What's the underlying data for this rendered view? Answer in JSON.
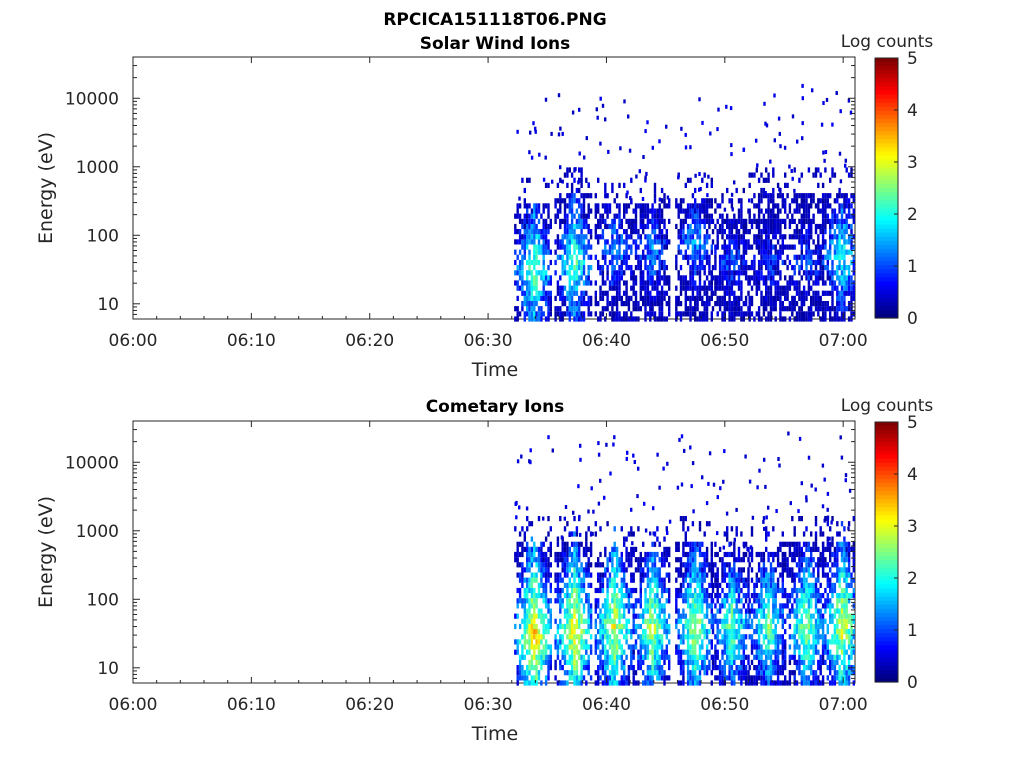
{
  "figure_title": "RPCICA151118T06.PNG",
  "chart_data": [
    {
      "type": "heatmap",
      "title": "Solar Wind Ions",
      "xlabel": "Time",
      "ylabel": "Energy (eV)",
      "x_ticks": [
        "06:00",
        "06:10",
        "06:20",
        "06:30",
        "06:40",
        "06:50",
        "07:00"
      ],
      "x_range_min": [
        0,
        61
      ],
      "y_scale": "log",
      "y_ticks": [
        "10",
        "100",
        "1000",
        "10000"
      ],
      "y_range": [
        6,
        40000
      ],
      "colorbar": {
        "label": "Log counts",
        "ticks": [
          "0",
          "1",
          "2",
          "3",
          "4",
          "5"
        ],
        "range": [
          0,
          5
        ],
        "colormap": "jet"
      },
      "bursts": [
        {
          "t": 33.8,
          "peak_e": 30,
          "top_e": 300,
          "level": 2.4
        },
        {
          "t": 37.2,
          "peak_e": 40,
          "top_e": 400,
          "level": 2.3
        },
        {
          "t": 40.6,
          "peak_e": 60,
          "top_e": 300,
          "level": 1.4
        },
        {
          "t": 43.8,
          "peak_e": 60,
          "top_e": 300,
          "level": 1.3
        },
        {
          "t": 47.4,
          "peak_e": 80,
          "top_e": 350,
          "level": 1.4
        },
        {
          "t": 50.5,
          "peak_e": 40,
          "top_e": 200,
          "level": 1.0
        },
        {
          "t": 53.6,
          "peak_e": 40,
          "top_e": 400,
          "level": 1.0
        },
        {
          "t": 56.8,
          "peak_e": 40,
          "top_e": 400,
          "level": 1.0
        },
        {
          "t": 59.8,
          "peak_e": 50,
          "top_e": 400,
          "level": 2.0
        }
      ]
    },
    {
      "type": "heatmap",
      "title": "Cometary Ions",
      "xlabel": "Time",
      "ylabel": "Energy (eV)",
      "x_ticks": [
        "06:00",
        "06:10",
        "06:20",
        "06:30",
        "06:40",
        "06:50",
        "07:00"
      ],
      "x_range_min": [
        0,
        61
      ],
      "y_scale": "log",
      "y_ticks": [
        "10",
        "100",
        "1000",
        "10000"
      ],
      "y_range": [
        6,
        40000
      ],
      "colorbar": {
        "label": "Log counts",
        "ticks": [
          "0",
          "1",
          "2",
          "3",
          "4",
          "5"
        ],
        "range": [
          0,
          5
        ],
        "colormap": "jet"
      },
      "bursts": [
        {
          "t": 33.8,
          "peak_e": 30,
          "top_e": 700,
          "level": 3.4
        },
        {
          "t": 37.2,
          "peak_e": 35,
          "top_e": 700,
          "level": 3.2
        },
        {
          "t": 40.6,
          "peak_e": 40,
          "top_e": 600,
          "level": 3.0
        },
        {
          "t": 43.8,
          "peak_e": 40,
          "top_e": 500,
          "level": 2.8
        },
        {
          "t": 47.4,
          "peak_e": 40,
          "top_e": 700,
          "level": 2.8
        },
        {
          "t": 50.5,
          "peak_e": 40,
          "top_e": 500,
          "level": 2.4
        },
        {
          "t": 53.6,
          "peak_e": 40,
          "top_e": 500,
          "level": 2.4
        },
        {
          "t": 56.8,
          "peak_e": 40,
          "top_e": 700,
          "level": 2.6
        },
        {
          "t": 59.8,
          "peak_e": 40,
          "top_e": 700,
          "level": 3.0
        }
      ]
    }
  ]
}
